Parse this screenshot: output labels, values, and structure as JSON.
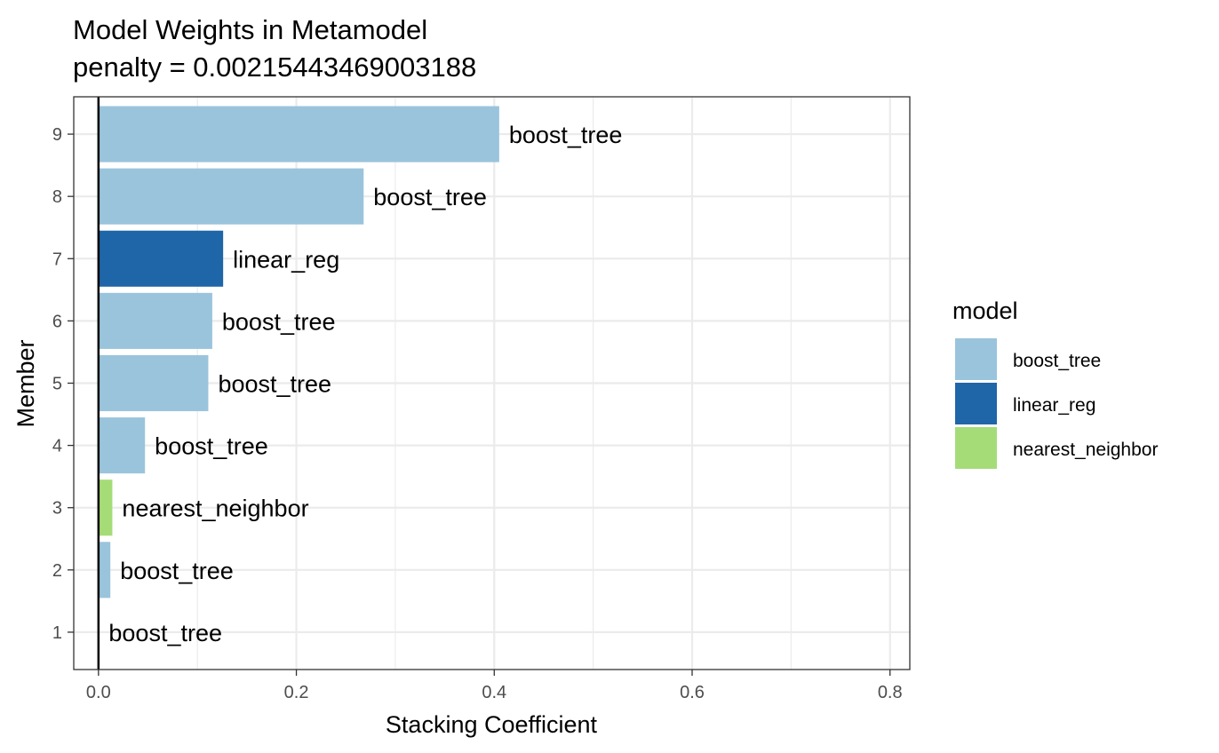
{
  "chart_data": {
    "type": "bar",
    "orientation": "horizontal",
    "title": "Model Weights in Metamodel",
    "subtitle": "penalty = 0.00215443469003188",
    "xlabel": "Stacking Coefficient",
    "ylabel": "Member",
    "xlim": [
      -0.025,
      0.82
    ],
    "xticks": [
      "0.0",
      "0.2",
      "0.4",
      "0.6",
      "0.8"
    ],
    "xtick_values": [
      0,
      0.2,
      0.4,
      0.6,
      0.8
    ],
    "grid": true,
    "legend": {
      "title": "model",
      "position": "right",
      "entries": [
        {
          "name": "boost_tree",
          "color": "#9ac4dc"
        },
        {
          "name": "linear_reg",
          "color": "#1f66a8"
        },
        {
          "name": "nearest_neighbor",
          "color": "#a6dc78"
        }
      ]
    },
    "categories": [
      "1",
      "2",
      "3",
      "4",
      "5",
      "6",
      "7",
      "8",
      "9"
    ],
    "bars": [
      {
        "member": "1",
        "value": 0.0005,
        "model": "boost_tree"
      },
      {
        "member": "2",
        "value": 0.012,
        "model": "boost_tree"
      },
      {
        "member": "3",
        "value": 0.014,
        "model": "nearest_neighbor"
      },
      {
        "member": "4",
        "value": 0.047,
        "model": "boost_tree"
      },
      {
        "member": "5",
        "value": 0.111,
        "model": "boost_tree"
      },
      {
        "member": "6",
        "value": 0.115,
        "model": "boost_tree"
      },
      {
        "member": "7",
        "value": 0.126,
        "model": "linear_reg"
      },
      {
        "member": "8",
        "value": 0.268,
        "model": "boost_tree"
      },
      {
        "member": "9",
        "value": 0.405,
        "model": "boost_tree"
      }
    ]
  }
}
